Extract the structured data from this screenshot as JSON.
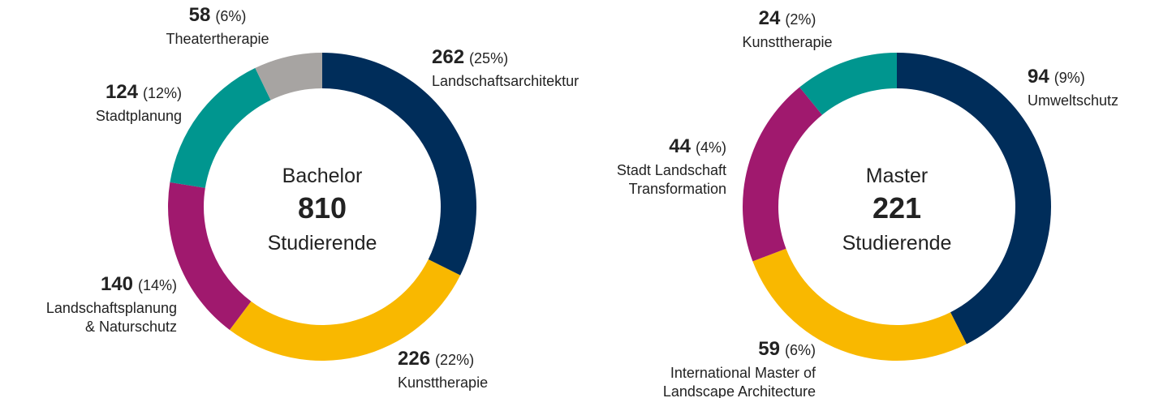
{
  "chart_data": [
    {
      "type": "pie",
      "center_title": "Bachelor",
      "total": 810,
      "center_unit": "Studierende",
      "categories": [
        [
          "Landschaftsarchitektur"
        ],
        [
          "Kunsttherapie"
        ],
        [
          "Landschaftsplanung",
          "& Naturschutz"
        ],
        [
          "Stadtplanung"
        ],
        [
          "Theatertherapie"
        ]
      ],
      "values": [
        262,
        226,
        140,
        124,
        58
      ],
      "share_labels": [
        "(25%)",
        "(22%)",
        "(14%)",
        "(12%)",
        "(6%)"
      ],
      "colors": [
        "#002d5a",
        "#f9b800",
        "#a0196e",
        "#00968f",
        "#a7a4a2"
      ]
    },
    {
      "type": "pie",
      "center_title": "Master",
      "total": 221,
      "center_unit": "Studierende",
      "categories": [
        [
          "Umweltschutz"
        ],
        [
          "International Master of",
          "Landscape Architecture"
        ],
        [
          "Stadt Landschaft",
          "Transformation"
        ],
        [
          "Kunsttherapie"
        ]
      ],
      "values": [
        94,
        59,
        44,
        24
      ],
      "share_labels": [
        "(9%)",
        "(6%)",
        "(4%)",
        "(2%)"
      ],
      "colors": [
        "#002d5a",
        "#f9b800",
        "#a0196e",
        "#00968f"
      ]
    }
  ]
}
